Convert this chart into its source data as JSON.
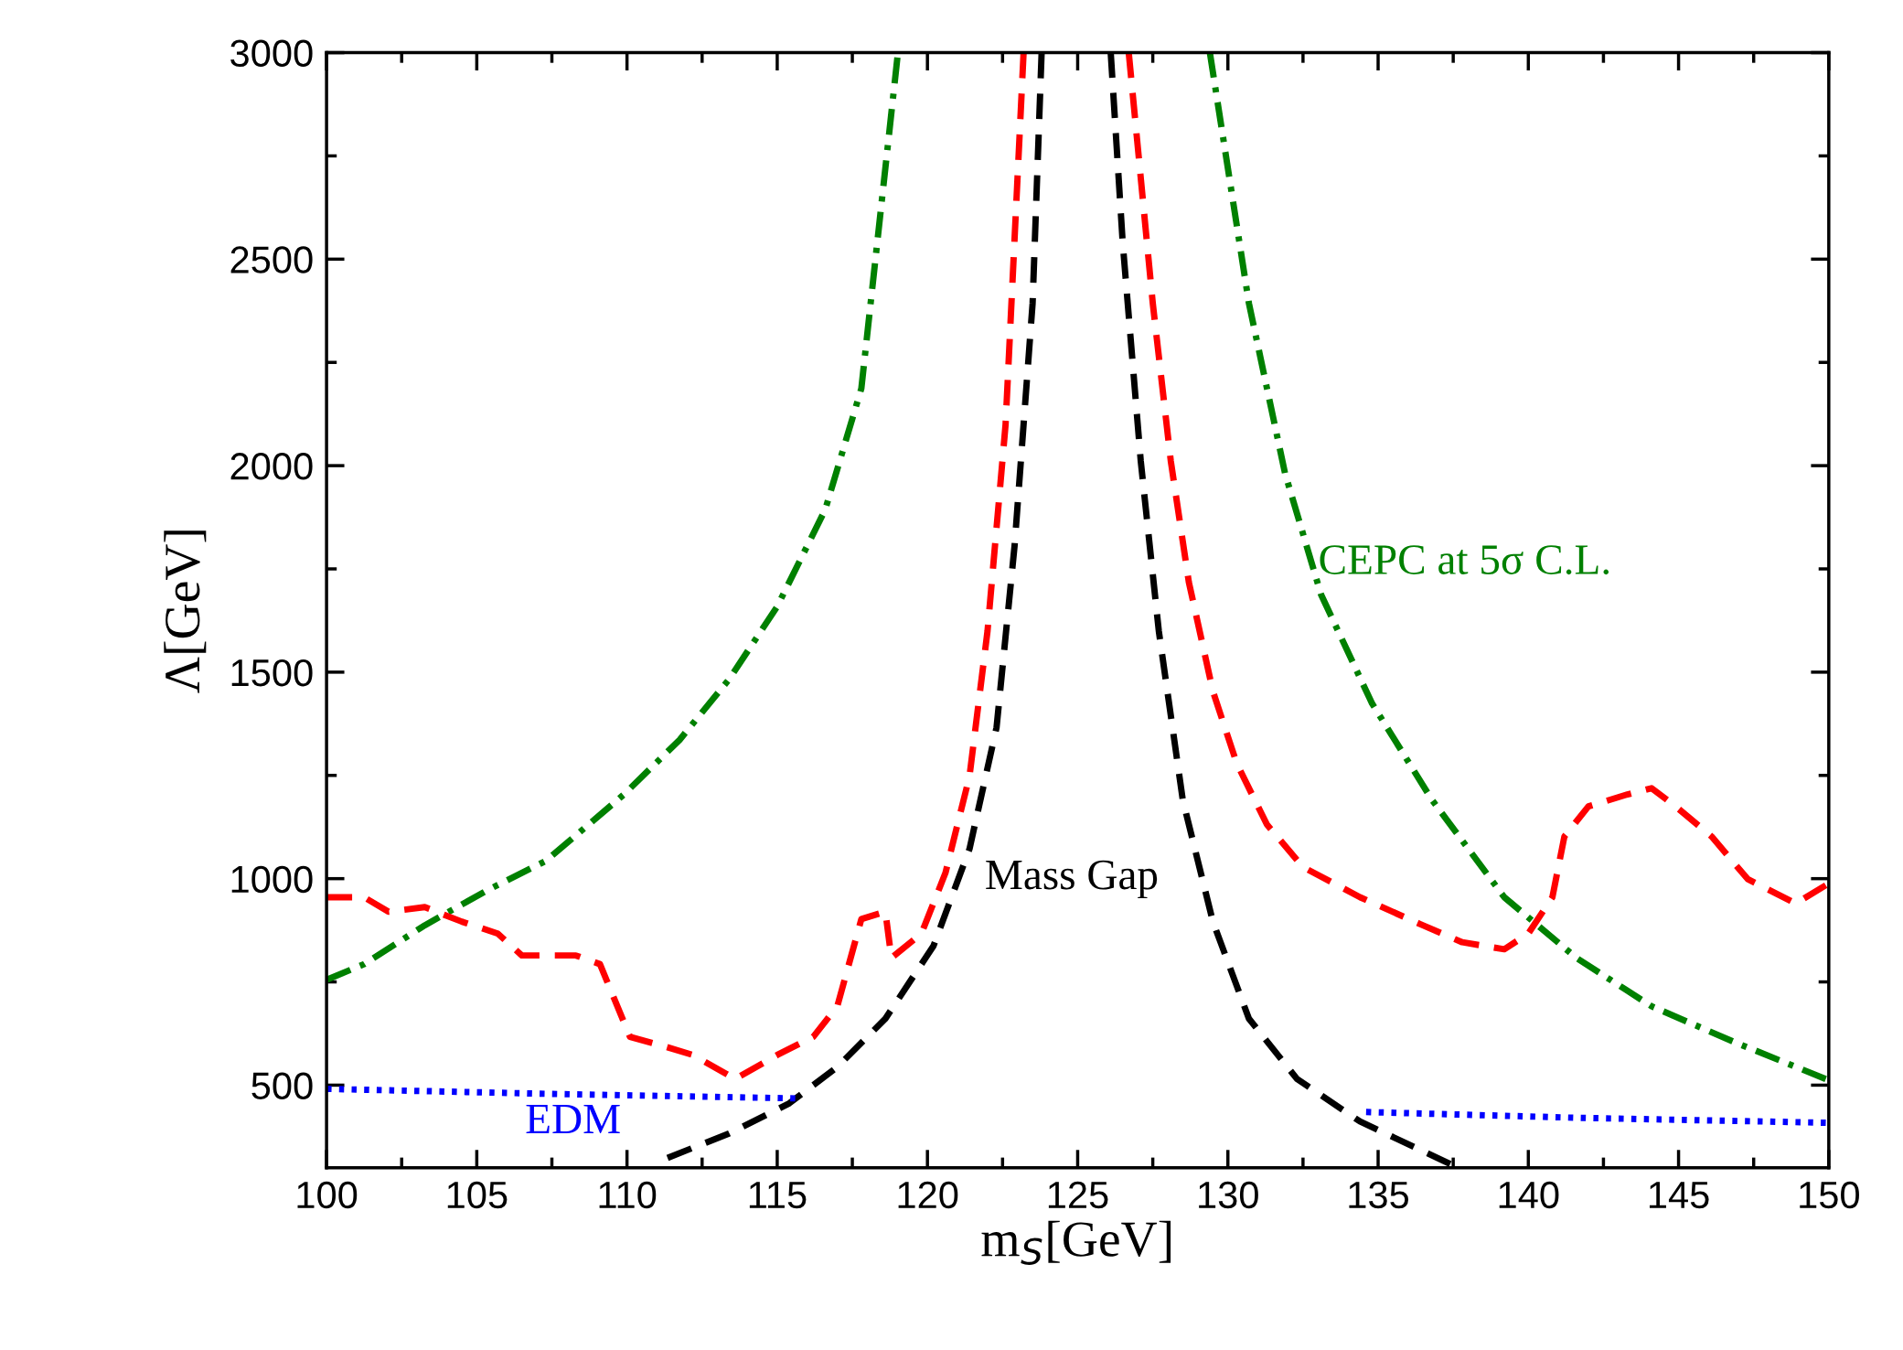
{
  "chart_data": {
    "type": "line",
    "xlabel": "m$_{S}$[GeV]",
    "ylabel": "Λ[GeV]",
    "xlim": [
      100,
      150
    ],
    "xticks": [
      100,
      105,
      110,
      115,
      120,
      125,
      130,
      135,
      140,
      145,
      150
    ],
    "ylim": [
      300,
      3000
    ],
    "yticks": [
      500,
      1000,
      1500,
      2000,
      2500,
      3000
    ],
    "grid": false,
    "series": [
      {
        "color": "#008000",
        "line_style": "dashdot",
        "x": [
          100,
          101.25,
          103.27,
          105.3,
          107.3,
          109.9,
          111.75,
          113.4,
          115,
          116.6,
          117.8,
          119.0,
          125,
          129.4,
          130.7,
          131.9,
          133.1,
          134.8,
          136.8,
          139.2,
          141.6,
          144.1,
          146.9,
          149.9
        ],
        "values": [
          755,
          793,
          887,
          970,
          1043,
          1204,
          1336,
          1483,
          1659,
          1894,
          2187,
          2988,
          null,
          3000,
          2393,
          1982,
          1688,
          1424,
          1190,
          955,
          808,
          691,
          603,
          515
        ]
      },
      {
        "color": "#ff0000",
        "line_style": "dashed",
        "x": [
          100,
          101.25,
          102.06,
          103.27,
          104.5,
          105.7,
          106.5,
          108.3,
          109.1,
          110.1,
          111.1,
          112.2,
          113.6,
          115,
          116.2,
          117,
          117.8,
          118.6,
          118.8,
          119.8,
          120.6,
          121.4,
          122.0,
          122.6,
          123.2,
          125,
          126.7,
          127.5,
          128.1,
          128.7,
          129.5,
          130.3,
          131.3,
          132.5,
          134.4,
          136.4,
          137.8,
          139.2,
          140.0,
          140.8,
          141.2,
          142.0,
          143.3,
          144.1,
          144.9,
          146.1,
          147.3,
          148.9,
          149.9
        ],
        "values": [
          955,
          955,
          920,
          931,
          896,
          867,
          814,
          814,
          793,
          617,
          597,
          573,
          515,
          573,
          617,
          691,
          902,
          920,
          808,
          867,
          1014,
          1248,
          1600,
          2099,
          3000,
          null,
          3000,
          2393,
          2011,
          1718,
          1454,
          1278,
          1131,
          1028,
          955,
          890,
          846,
          829,
          867,
          955,
          1102,
          1175,
          1204,
          1219,
          1175,
          1102,
          999,
          940,
          984
        ]
      },
      {
        "color": "#000000",
        "line_style": "dashed",
        "x": [
          111.35,
          113.4,
          115.4,
          117,
          118.6,
          120.2,
          121.4,
          122.3,
          122.9,
          123.5,
          123.8,
          125,
          126.1,
          126.5,
          127.1,
          127.7,
          128.5,
          129.5,
          130.7,
          132.3,
          134.4,
          137.4
        ],
        "values": [
          324,
          383,
          456,
          544,
          661,
          837,
          1072,
          1366,
          1806,
          2393,
          3000,
          null,
          3000,
          2539,
          2011,
          1600,
          1190,
          896,
          661,
          515,
          412,
          309
        ]
      },
      {
        "color": "#0000ff",
        "line_style": "dotted",
        "x": [
          100,
          107.3,
          115.6,
          125,
          134.6,
          141.6,
          149.9
        ],
        "values": [
          491,
          479,
          468,
          null,
          435,
          421,
          409
        ]
      }
    ],
    "annotations": [
      {
        "text": "CEPC at 5σ C.L.",
        "x": 132.5,
        "y": 1835
      },
      {
        "text": "Mass Gap",
        "x": 121.4,
        "y": 1072
      },
      {
        "text": "EDM",
        "x": 106.1,
        "y": 481
      }
    ]
  }
}
